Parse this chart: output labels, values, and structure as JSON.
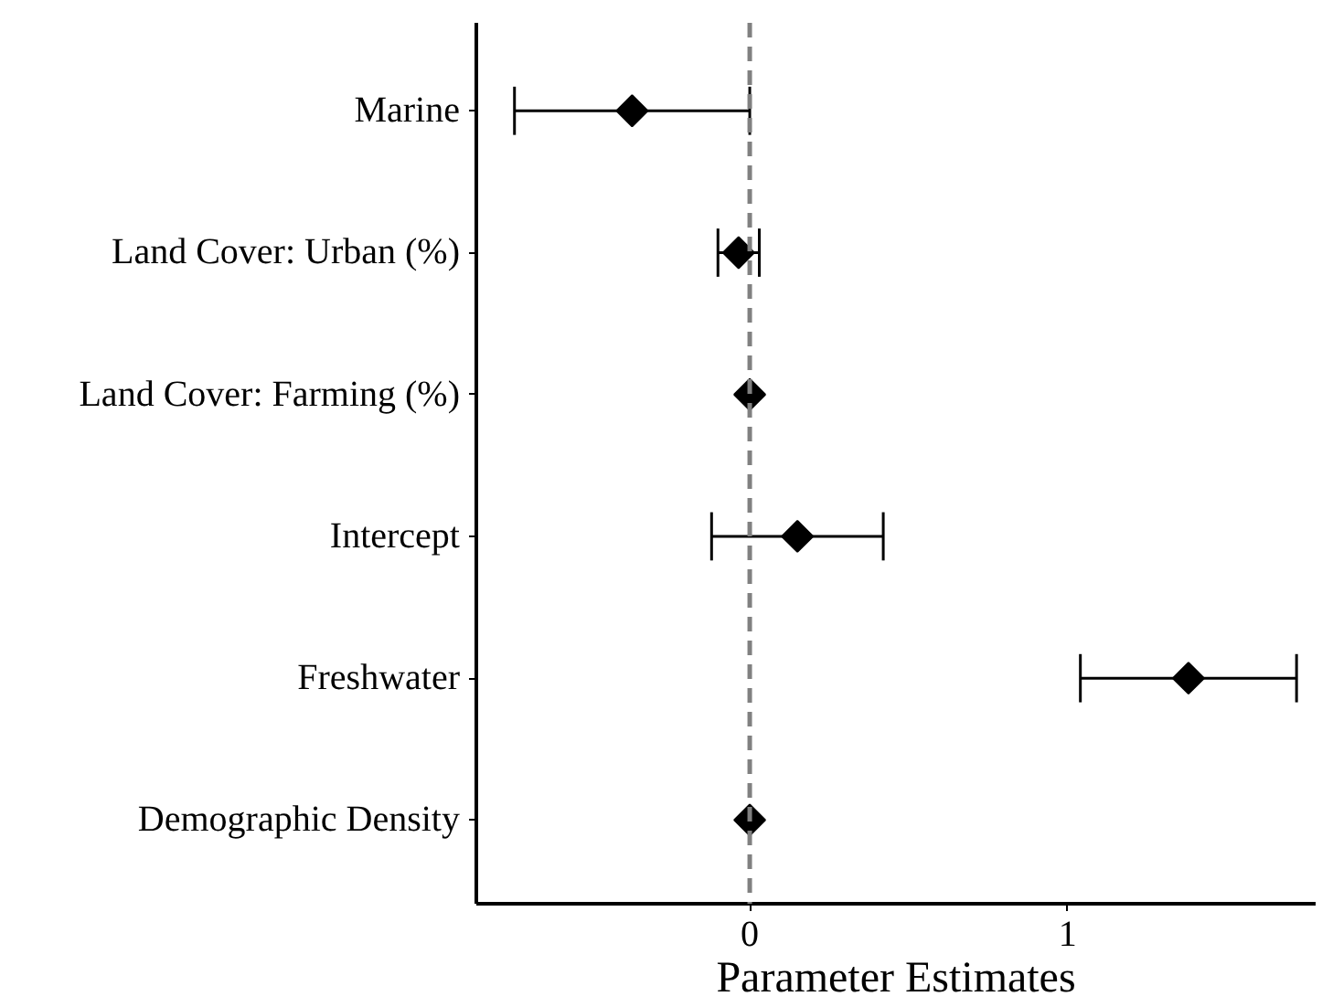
{
  "chart_data": {
    "type": "scatter",
    "orientation": "horizontal",
    "xlabel": "Parameter Estimates",
    "categories": [
      "Marine",
      "Land Cover: Urban (%)",
      "Land Cover: Farming (%)",
      "Intercept",
      "Freshwater",
      "Demographic Density"
    ],
    "values": [
      -0.37,
      -0.035,
      0.0,
      0.15,
      1.38,
      0.0
    ],
    "errors": [
      [
        -0.74,
        0.0
      ],
      [
        -0.1,
        0.03
      ],
      null,
      [
        -0.12,
        0.42
      ],
      [
        1.04,
        1.72
      ],
      null
    ],
    "color": "#000000",
    "marker": "diamond",
    "grid": false,
    "xlim": [
      -0.86,
      1.78
    ],
    "xticks": [
      0,
      1
    ],
    "ref_lines": [
      {
        "axis": "x",
        "value": 0,
        "color": "#808080",
        "line_style": "dashed"
      }
    ]
  }
}
